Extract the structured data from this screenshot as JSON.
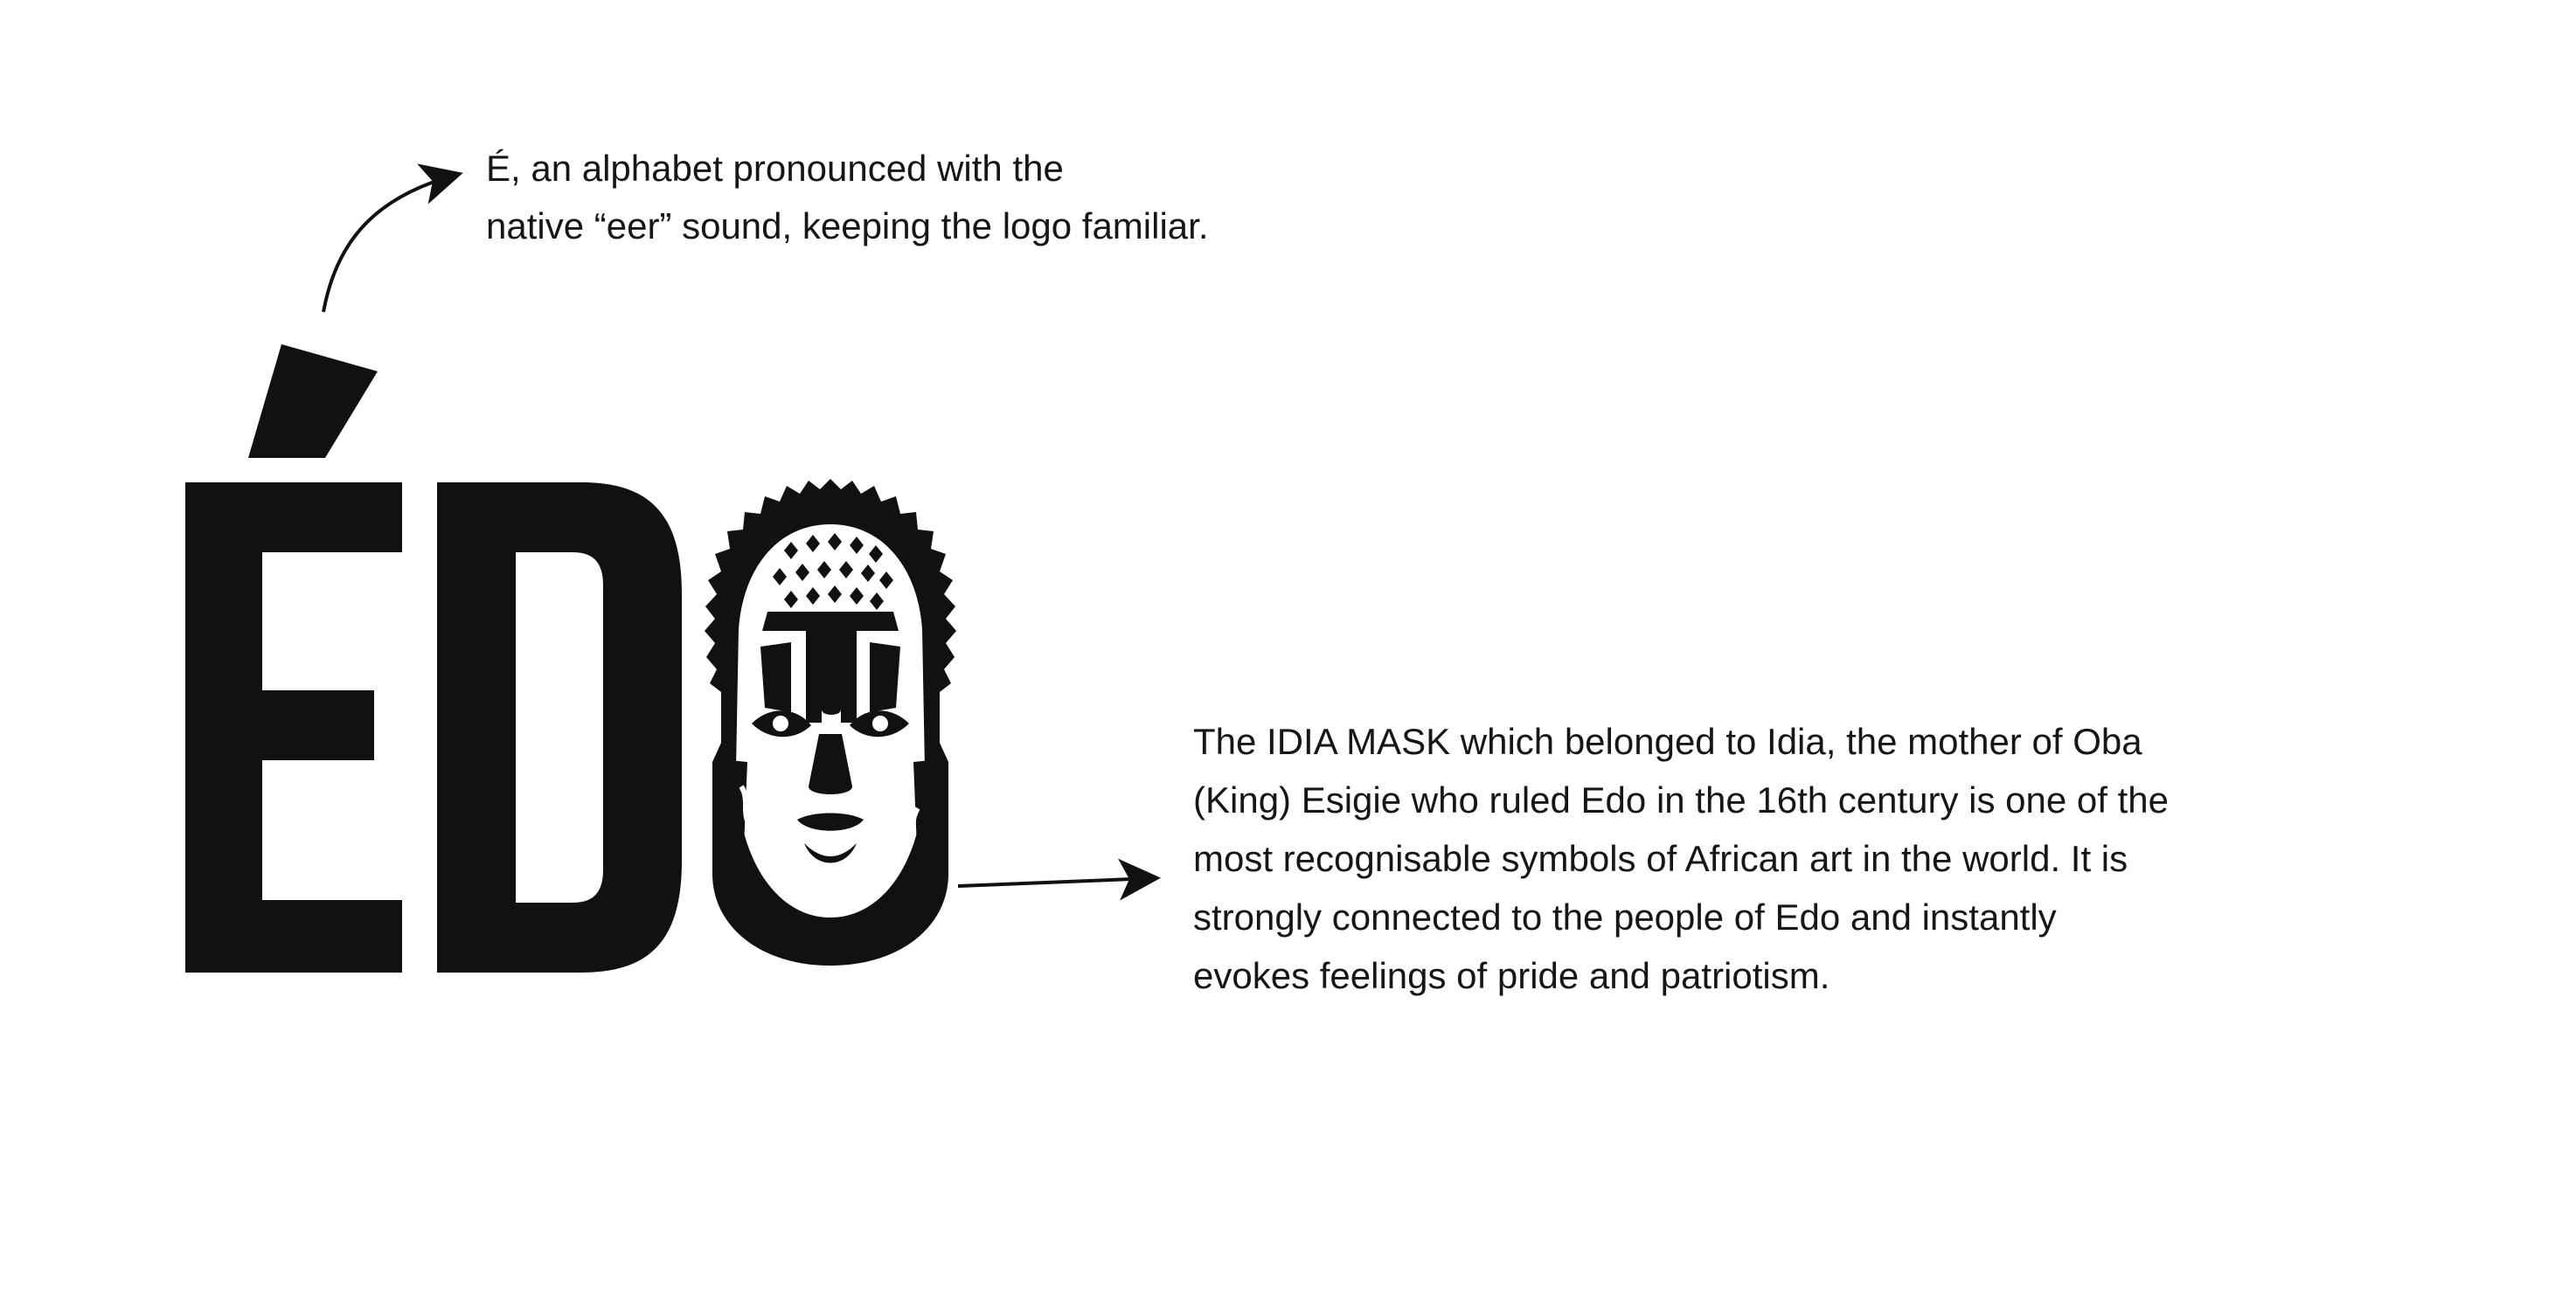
{
  "logo": {
    "letters": "ÉDO",
    "mask_name": "idia-mask"
  },
  "annotations": {
    "accent_note": {
      "lines": [
        "É, an alphabet pronounced with the",
        "native “eer” sound, keeping the logo familiar."
      ]
    },
    "mask_note": {
      "lines": [
        "The IDIA MASK which belonged to Idia, the mother of Oba",
        "(King) Esigie who ruled Edo in the 16th century is one of the",
        "most recognisable symbols of African art in the world. It is",
        "strongly connected to the people of Edo and instantly",
        "evokes feelings of pride and patriotism."
      ]
    }
  },
  "colors": {
    "ink": "#111111",
    "background": "#ffffff"
  }
}
